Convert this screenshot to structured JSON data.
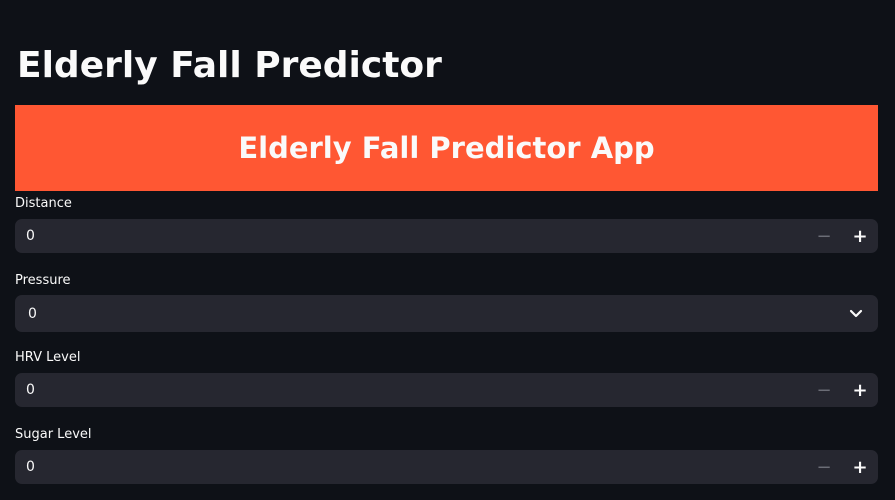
{
  "header": {
    "title": "Elderly Fall Predictor"
  },
  "banner": {
    "text": "Elderly Fall Predictor App",
    "color": "#ff5733"
  },
  "fields": {
    "distance": {
      "label": "Distance",
      "value": "0",
      "minus": "−",
      "plus": "+"
    },
    "pressure": {
      "label": "Pressure",
      "value": "0",
      "icon": "chevron-down-icon"
    },
    "hrv": {
      "label": "HRV Level",
      "value": "0",
      "minus": "−",
      "plus": "+"
    },
    "sugar": {
      "label": "Sugar Level",
      "value": "0",
      "minus": "−",
      "plus": "+"
    }
  },
  "theme": {
    "background": "#0e1117",
    "input_bg": "#262730",
    "text": "#fafafa"
  }
}
